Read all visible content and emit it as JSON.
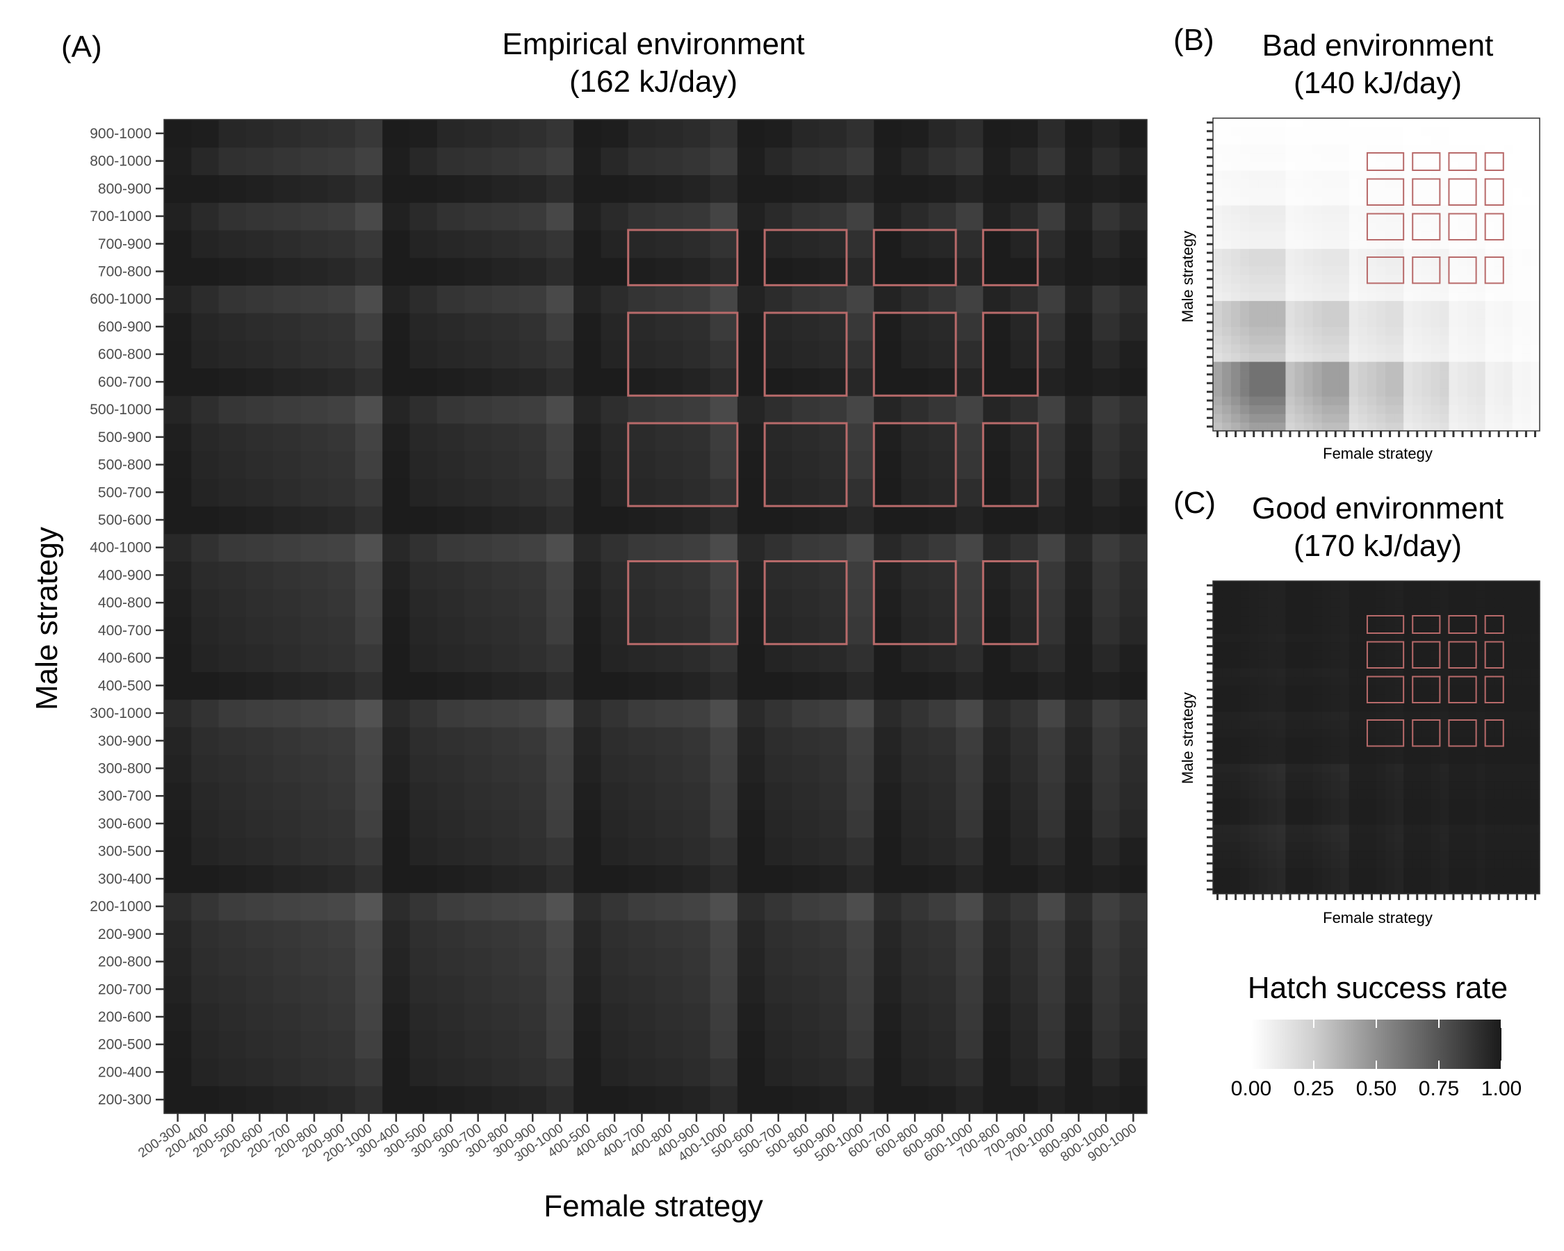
{
  "figure": {
    "panel_a": {
      "letter": "(A)",
      "title_line1": "Empirical environment",
      "title_line2": "(162 kJ/day)",
      "xlabel": "Female strategy",
      "ylabel": "Male strategy"
    },
    "panel_b": {
      "letter": "(B)",
      "title_line1": "Bad environment",
      "title_line2": "(140 kJ/day)",
      "xlabel": "Female strategy",
      "ylabel": "Male strategy"
    },
    "panel_c": {
      "letter": "(C)",
      "title_line1": "Good environment",
      "title_line2": "(170 kJ/day)",
      "xlabel": "Female strategy",
      "ylabel": "Male strategy"
    },
    "legend": {
      "title": "Hatch success rate",
      "ticks": [
        "0.00",
        "0.25",
        "0.50",
        "0.75",
        "1.00"
      ]
    }
  },
  "chart_data": [
    {
      "type": "heatmap",
      "panel": "A",
      "title": "Empirical environment (162 kJ/day)",
      "xlabel": "Female strategy",
      "ylabel": "Male strategy",
      "value_label": "Hatch success rate",
      "value_range": [
        0,
        1
      ],
      "color_scale": "white (0.00) to near-black (1.00)",
      "note": "Cell values estimated from grayscale shading; most cells lie between ~0.78 and ~0.98",
      "categories": [
        "200-300",
        "200-400",
        "200-500",
        "200-600",
        "200-700",
        "200-800",
        "200-900",
        "200-1000",
        "300-400",
        "300-500",
        "300-600",
        "300-700",
        "300-800",
        "300-900",
        "300-1000",
        "400-500",
        "400-600",
        "400-700",
        "400-800",
        "400-900",
        "400-1000",
        "500-600",
        "500-700",
        "500-800",
        "500-900",
        "500-1000",
        "600-700",
        "600-800",
        "600-900",
        "600-1000",
        "700-800",
        "700-900",
        "700-1000",
        "800-900",
        "800-1000",
        "900-1000"
      ],
      "highlight_boxes": [
        {
          "x": [
            "400-700",
            "400-1000"
          ],
          "y": [
            "700-800",
            "700-900"
          ]
        },
        {
          "x": [
            "500-700",
            "500-900"
          ],
          "y": [
            "700-800",
            "700-900"
          ]
        },
        {
          "x": [
            "600-700",
            "600-900"
          ],
          "y": [
            "700-800",
            "700-900"
          ]
        },
        {
          "x": [
            "700-800",
            "700-900"
          ],
          "y": [
            "700-800",
            "700-900"
          ]
        },
        {
          "x": [
            "400-700",
            "400-1000"
          ],
          "y": [
            "600-700",
            "600-900"
          ]
        },
        {
          "x": [
            "500-700",
            "500-900"
          ],
          "y": [
            "600-700",
            "600-900"
          ]
        },
        {
          "x": [
            "600-700",
            "600-900"
          ],
          "y": [
            "600-700",
            "600-900"
          ]
        },
        {
          "x": [
            "700-800",
            "700-900"
          ],
          "y": [
            "600-700",
            "600-900"
          ]
        },
        {
          "x": [
            "400-700",
            "400-1000"
          ],
          "y": [
            "500-700",
            "500-900"
          ]
        },
        {
          "x": [
            "500-700",
            "500-900"
          ],
          "y": [
            "500-700",
            "500-900"
          ]
        },
        {
          "x": [
            "600-700",
            "600-900"
          ],
          "y": [
            "500-700",
            "500-900"
          ]
        },
        {
          "x": [
            "700-800",
            "700-900"
          ],
          "y": [
            "500-700",
            "500-900"
          ]
        },
        {
          "x": [
            "400-700",
            "400-1000"
          ],
          "y": [
            "400-700",
            "400-900"
          ]
        },
        {
          "x": [
            "500-700",
            "500-900"
          ],
          "y": [
            "400-700",
            "400-900"
          ]
        },
        {
          "x": [
            "600-700",
            "600-900"
          ],
          "y": [
            "400-700",
            "400-900"
          ]
        },
        {
          "x": [
            "700-800",
            "700-900"
          ],
          "y": [
            "400-700",
            "400-900"
          ]
        }
      ],
      "highlight_color": "#b86a6a"
    },
    {
      "type": "heatmap",
      "panel": "B",
      "title": "Bad environment (140 kJ/day)",
      "xlabel": "Female strategy",
      "ylabel": "Male strategy",
      "value_range": [
        0,
        1
      ],
      "note": "Mostly near 0 (white); highest values (~0.5-0.7) in low male/low female strategy corner",
      "highlight_color": "#b86a6a"
    },
    {
      "type": "heatmap",
      "panel": "C",
      "title": "Good environment (170 kJ/day)",
      "xlabel": "Female strategy",
      "ylabel": "Male strategy",
      "value_range": [
        0,
        1
      ],
      "note": "Nearly uniform near 1.0 (near-black) across all strategies",
      "highlight_color": "#b86a6a"
    }
  ]
}
